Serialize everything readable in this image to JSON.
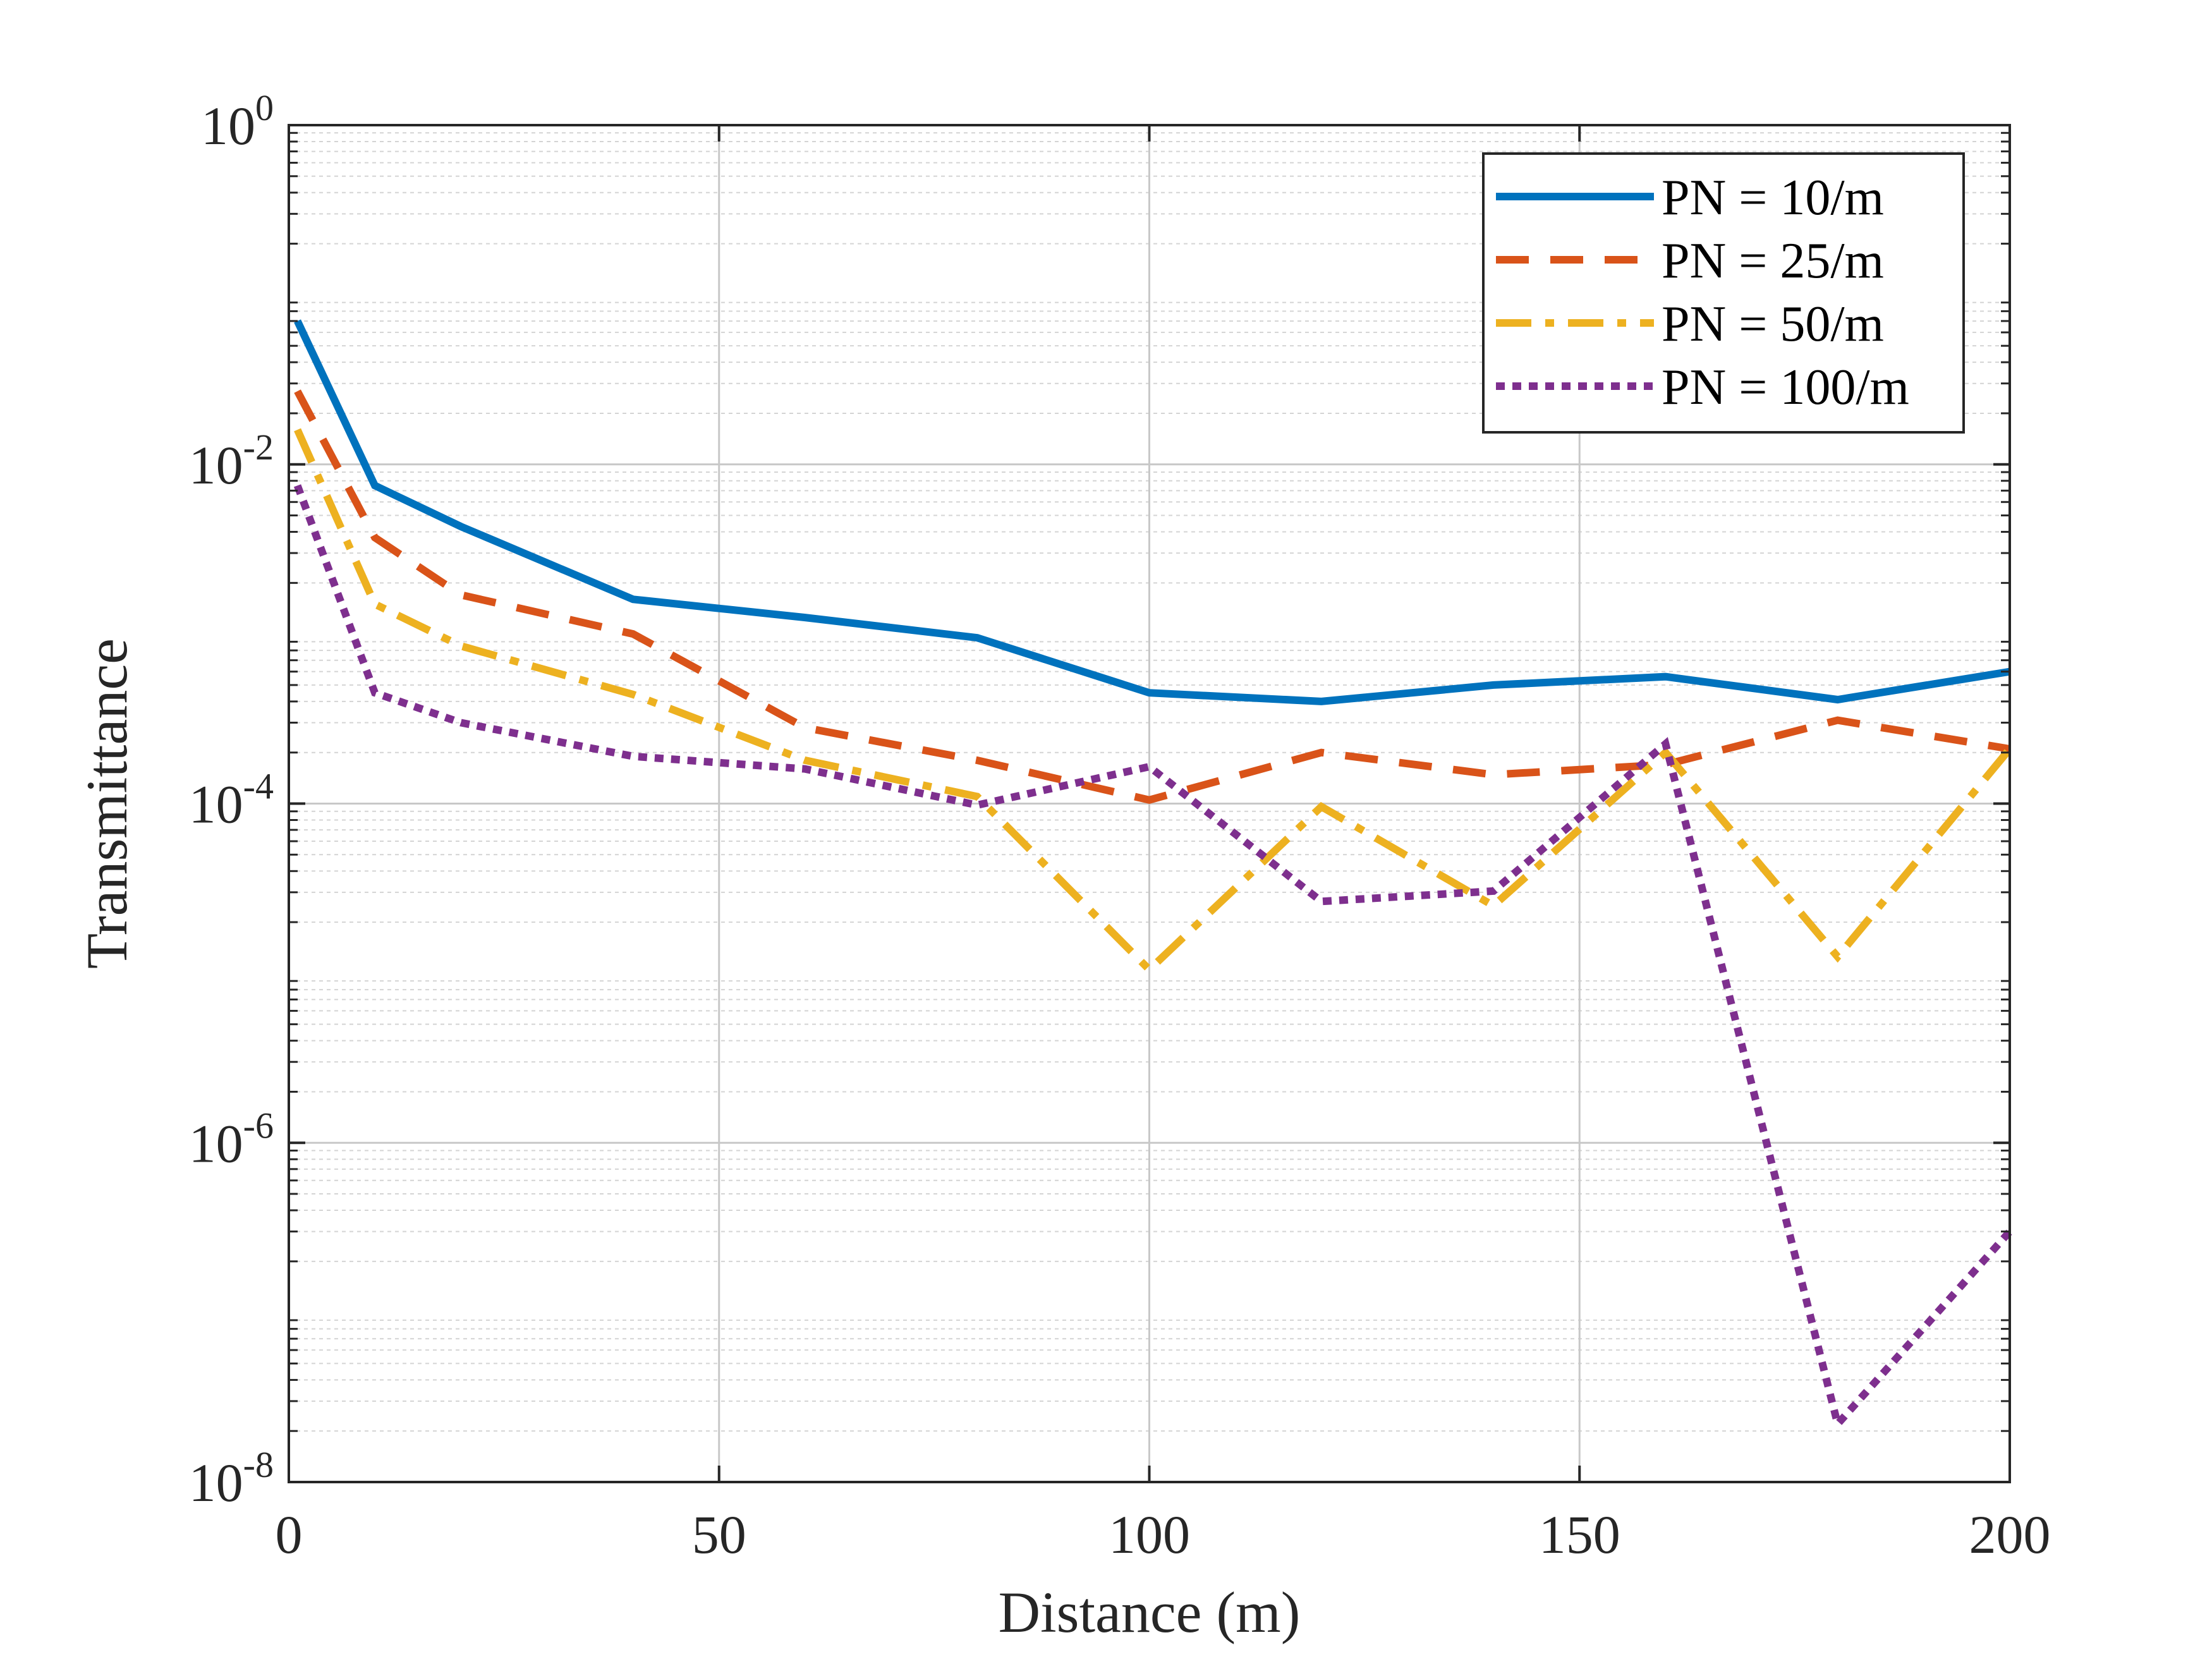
{
  "chart_data": {
    "type": "line",
    "title": "",
    "xlabel": "Distance (m)",
    "ylabel": "Transmittance",
    "xlim": [
      0,
      200
    ],
    "ylim": [
      1e-08,
      1
    ],
    "yscale": "log",
    "grid": true,
    "legend_position": "top-right",
    "x_ticks": [
      {
        "value": 0,
        "label": "0"
      },
      {
        "value": 50,
        "label": "50"
      },
      {
        "value": 100,
        "label": "100"
      },
      {
        "value": 150,
        "label": "150"
      },
      {
        "value": 200,
        "label": "200"
      }
    ],
    "y_ticks": [
      {
        "value": 1,
        "base": "10",
        "exp": "0"
      },
      {
        "value": 0.01,
        "base": "10",
        "exp": "-2"
      },
      {
        "value": 0.0001,
        "base": "10",
        "exp": "-4"
      },
      {
        "value": 1e-06,
        "base": "10",
        "exp": "-6"
      },
      {
        "value": 1e-08,
        "base": "10",
        "exp": "-8"
      }
    ],
    "series": [
      {
        "name": "PN = 10/m",
        "color": "#0072BD",
        "style": "solid",
        "x": [
          1,
          10,
          20,
          40,
          60,
          80,
          100,
          120,
          140,
          160,
          180,
          200
        ],
        "y": [
          0.07,
          0.0075,
          0.0043,
          0.0016,
          0.00125,
          0.00095,
          0.00045,
          0.0004,
          0.0005,
          0.00056,
          0.00041,
          0.0006
        ]
      },
      {
        "name": "PN = 25/m",
        "color": "#D95319",
        "style": "dashed",
        "x": [
          1,
          10,
          20,
          40,
          60,
          80,
          100,
          120,
          140,
          160,
          180,
          200
        ],
        "y": [
          0.027,
          0.0037,
          0.0017,
          0.001,
          0.00028,
          0.00018,
          0.000105,
          0.0002,
          0.000148,
          0.00017,
          0.00031,
          0.00021
        ]
      },
      {
        "name": "PN = 50/m",
        "color": "#EDB120",
        "style": "dashdot",
        "x": [
          1,
          10,
          20,
          40,
          60,
          80,
          100,
          120,
          140,
          160,
          180,
          200
        ],
        "y": [
          0.016,
          0.0015,
          0.00085,
          0.00044,
          0.00018,
          0.00011,
          1.05e-05,
          9.6e-05,
          2.5e-05,
          0.0002,
          1.25e-05,
          0.00021
        ]
      },
      {
        "name": "PN = 100/m",
        "color": "#7E2F8E",
        "style": "dotted",
        "x": [
          1,
          10,
          20,
          40,
          60,
          80,
          100,
          120,
          140,
          160,
          180,
          200
        ],
        "y": [
          0.0075,
          0.00045,
          0.0003,
          0.00019,
          0.00016,
          9.8e-05,
          0.000165,
          2.65e-05,
          3.05e-05,
          0.000225,
          2.2e-08,
          3e-07
        ]
      }
    ]
  }
}
